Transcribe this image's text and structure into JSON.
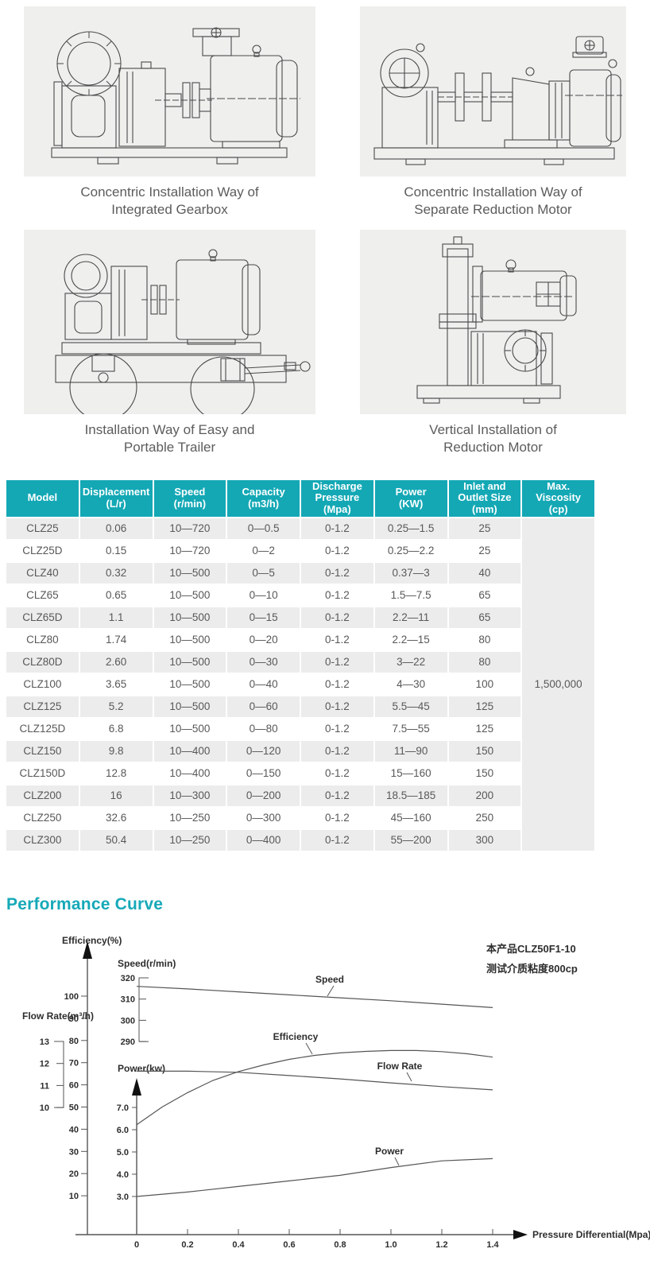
{
  "figures": [
    {
      "caption": "Concentric Installation Way of\nIntegrated Gearbox"
    },
    {
      "caption": "Concentric Installation Way of\nSeparate Reduction Motor"
    },
    {
      "caption": "Installation Way of Easy and\nPortable Trailer"
    },
    {
      "caption": "Vertical Installation of\nReduction Motor"
    }
  ],
  "spec_table": {
    "header_bg": "#14a8b5",
    "columns": [
      "Model",
      "Displacement\n(L/r)",
      "Speed\n(r/min)",
      "Capacity\n(m3/h)",
      "Discharge\nPressure\n(Mpa)",
      "Power\n(KW)",
      "Inlet and\nOutlet Size\n(mm)",
      "Max. Viscosity\n(cp)"
    ],
    "rows": [
      [
        "CLZ25",
        "0.06",
        "10—720",
        "0—0.5",
        "0-1.2",
        "0.25—1.5",
        "25"
      ],
      [
        "CLZ25D",
        "0.15",
        "10—720",
        "0—2",
        "0-1.2",
        "0.25—2.2",
        "25"
      ],
      [
        "CLZ40",
        "0.32",
        "10—500",
        "0—5",
        "0-1.2",
        "0.37—3",
        "40"
      ],
      [
        "CLZ65",
        "0.65",
        "10—500",
        "0—10",
        "0-1.2",
        "1.5—7.5",
        "65"
      ],
      [
        "CLZ65D",
        "1.1",
        "10—500",
        "0—15",
        "0-1.2",
        "2.2—11",
        "65"
      ],
      [
        "CLZ80",
        "1.74",
        "10—500",
        "0—20",
        "0-1.2",
        "2.2—15",
        "80"
      ],
      [
        "CLZ80D",
        "2.60",
        "10—500",
        "0—30",
        "0-1.2",
        "3—22",
        "80"
      ],
      [
        "CLZ100",
        "3.65",
        "10—500",
        "0—40",
        "0-1.2",
        "4—30",
        "100"
      ],
      [
        "CLZ125",
        "5.2",
        "10—500",
        "0—60",
        "0-1.2",
        "5.5—45",
        "125"
      ],
      [
        "CLZ125D",
        "6.8",
        "10—500",
        "0—80",
        "0-1.2",
        "7.5—55",
        "125"
      ],
      [
        "CLZ150",
        "9.8",
        "10—400",
        "0—120",
        "0-1.2",
        "11—90",
        "150"
      ],
      [
        "CLZ150D",
        "12.8",
        "10—400",
        "0—150",
        "0-1.2",
        "15—160",
        "150"
      ],
      [
        "CLZ200",
        "16",
        "10—300",
        "0—200",
        "0-1.2",
        "18.5—185",
        "200"
      ],
      [
        "CLZ250",
        "32.6",
        "10—250",
        "0—300",
        "0-1.2",
        "45—160",
        "250"
      ],
      [
        "CLZ300",
        "50.4",
        "10—250",
        "0—400",
        "0-1.2",
        "55—200",
        "300"
      ]
    ],
    "max_viscosity": "1,500,000"
  },
  "performance": {
    "title": "Performance Curve",
    "title_color": "#16a9b8",
    "annotation_line1": "本产品CLZ50F1-10",
    "annotation_line2": "测试介质粘度800cp"
  },
  "chart_data": {
    "type": "line",
    "title": "Performance Curve",
    "xlabel": "Pressure Differential(Mpa)",
    "x_ticks": [
      "0",
      "0.2",
      "0.4",
      "0.6",
      "0.8",
      "1.0",
      "1.2",
      "1.4"
    ],
    "xlim": [
      0,
      1.4
    ],
    "grid": false,
    "axes": {
      "efficiency": {
        "label": "Efficiency(%)",
        "ticks": [
          "100",
          "90",
          "80",
          "70",
          "60",
          "50",
          "40",
          "30",
          "20",
          "10"
        ],
        "range": [
          10,
          100
        ]
      },
      "speed": {
        "label": "Speed(r/min)",
        "ticks": [
          "320",
          "310",
          "300",
          "290"
        ],
        "range": [
          290,
          320
        ]
      },
      "flow": {
        "label": "Flow Rate(m³/h)",
        "ticks": [
          "13",
          "12",
          "11",
          "10"
        ],
        "range": [
          10,
          13
        ]
      },
      "power": {
        "label": "Power(kw)",
        "ticks": [
          "7.0",
          "6.0",
          "5.0",
          "4.0",
          "3.0"
        ],
        "range": [
          3,
          7
        ]
      }
    },
    "series": [
      {
        "name": "Speed",
        "axis": "speed",
        "x": [
          0,
          0.2,
          0.4,
          0.6,
          0.8,
          1.0,
          1.2,
          1.4
        ],
        "values": [
          316,
          314.8,
          313.4,
          312,
          310.6,
          309.2,
          307.6,
          306
        ]
      },
      {
        "name": "Efficiency",
        "axis": "efficiency",
        "x": [
          0,
          0.1,
          0.2,
          0.3,
          0.4,
          0.5,
          0.6,
          0.7,
          0.8,
          0.9,
          1.0,
          1.1,
          1.2,
          1.3,
          1.4
        ],
        "values": [
          42,
          50,
          56.5,
          62,
          66,
          69,
          71.5,
          73.3,
          74.4,
          75.1,
          75.5,
          75.5,
          75,
          74,
          72.5
        ]
      },
      {
        "name": "Flow Rate",
        "axis": "flow",
        "x": [
          0,
          0.2,
          0.4,
          0.6,
          0.8,
          1.0,
          1.2,
          1.4
        ],
        "values": [
          11.65,
          11.65,
          11.6,
          11.45,
          11.3,
          11.12,
          10.95,
          10.8
        ]
      },
      {
        "name": "Power",
        "axis": "power",
        "x": [
          0,
          0.2,
          0.4,
          0.6,
          0.8,
          1.0,
          1.2,
          1.4
        ],
        "values": [
          3.0,
          3.2,
          3.45,
          3.7,
          3.95,
          4.3,
          4.6,
          4.7
        ]
      }
    ]
  }
}
